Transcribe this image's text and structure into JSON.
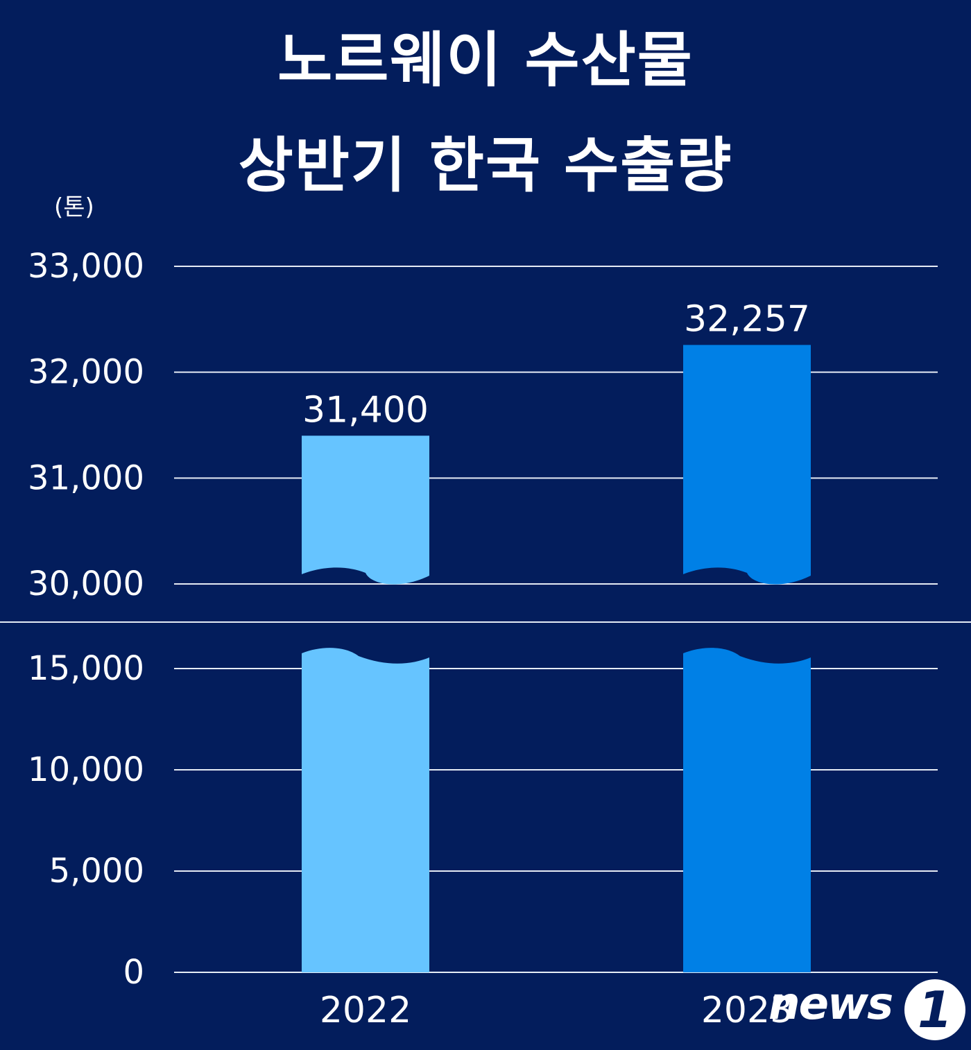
{
  "title": {
    "line1": "노르웨이 수산물",
    "line2": "상반기 한국 수출량"
  },
  "unit_label": "(톤)",
  "logo": {
    "text": "news",
    "badge": "1"
  },
  "colors": {
    "background": "#031d5c",
    "gridline": "#e6ecf5",
    "text": "#ffffff",
    "bar_2022": "#66c4ff",
    "bar_2023": "#0080e6"
  },
  "chart_data": {
    "type": "bar",
    "title": "노르웨이 수산물 상반기 한국 수출량",
    "ylabel": "(톤)",
    "xlabel": "",
    "categories": [
      "2022",
      "2023"
    ],
    "values": [
      31400,
      32257
    ],
    "data_labels": [
      "31,400",
      "32,257"
    ],
    "ylim": [
      0,
      33000
    ],
    "axis_break": [
      15000,
      30000
    ],
    "ticks_upper": [
      "33,000",
      "32,000",
      "31,000",
      "30,000"
    ],
    "ticks_lower": [
      "15,000",
      "10,000",
      "5,000",
      "0"
    ],
    "grid": true,
    "legend": "none"
  }
}
